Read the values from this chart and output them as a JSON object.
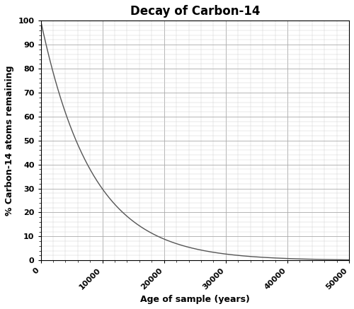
{
  "title": "Decay of Carbon-14",
  "xlabel": "Age of sample (years)",
  "ylabel": "% Carbon-14 atoms remaining",
  "xlim": [
    0,
    50000
  ],
  "ylim": [
    0,
    100
  ],
  "xticks": [
    0,
    10000,
    20000,
    30000,
    40000,
    50000
  ],
  "yticks": [
    0,
    10,
    20,
    30,
    40,
    50,
    60,
    70,
    80,
    90,
    100
  ],
  "x_minor_ticks": 2000,
  "y_minor_ticks": 2,
  "half_life": 5730,
  "line_color": "#555555",
  "line_width": 1.0,
  "grid_major_color": "#aaaaaa",
  "grid_minor_color": "#cccccc",
  "background_color": "#ffffff",
  "title_fontsize": 12,
  "label_fontsize": 9,
  "tick_fontsize": 8,
  "tick_rotation": 45,
  "figsize": [
    5.0,
    4.37
  ],
  "dpi": 100
}
